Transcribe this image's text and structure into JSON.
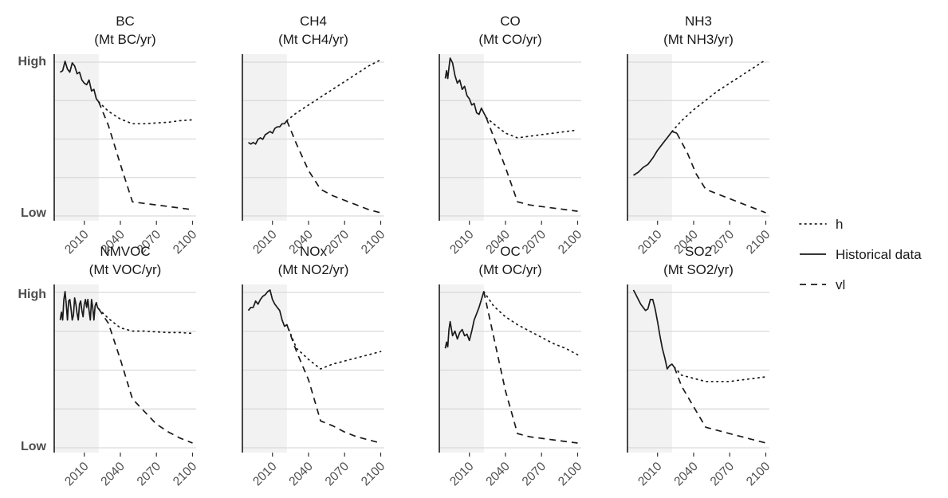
{
  "y_labels": {
    "high": "High",
    "low": "Low"
  },
  "legend": [
    {
      "label": "h",
      "dash": "dotted"
    },
    {
      "label": "Historical data",
      "dash": "solid"
    },
    {
      "label": "vl",
      "dash": "dashed"
    }
  ],
  "chart_data": [
    {
      "type": "line",
      "title": "BC",
      "subtitle": "(Mt BC/yr)",
      "xlim": [
        1985,
        2103
      ],
      "xticks": [
        2010,
        2040,
        2070,
        2100
      ],
      "y_scale": "relative (Low to High, unlabeled values)",
      "historical_shading": [
        1985,
        2022
      ],
      "series": [
        {
          "name": "Historical data",
          "x": [
            1990,
            1992,
            1994,
            1996,
            1998,
            2000,
            2002,
            2004,
            2006,
            2008,
            2010,
            2012,
            2014,
            2016,
            2018,
            2020,
            2022
          ],
          "y": [
            0.91,
            0.92,
            0.98,
            0.93,
            0.91,
            0.97,
            0.95,
            0.9,
            0.91,
            0.86,
            0.84,
            0.83,
            0.86,
            0.79,
            0.8,
            0.74,
            0.72
          ]
        },
        {
          "name": "h",
          "x": [
            2022,
            2030,
            2040,
            2050,
            2060,
            2070,
            2080,
            2090,
            2100
          ],
          "y": [
            0.72,
            0.66,
            0.61,
            0.58,
            0.58,
            0.585,
            0.59,
            0.6,
            0.605
          ]
        },
        {
          "name": "vl",
          "x": [
            2022,
            2030,
            2040,
            2050,
            2060,
            2070,
            2080,
            2090,
            2100
          ],
          "y": [
            0.72,
            0.57,
            0.32,
            0.08,
            0.07,
            0.06,
            0.05,
            0.04,
            0.03
          ]
        }
      ]
    },
    {
      "type": "line",
      "title": "CH4",
      "subtitle": "(Mt CH4/yr)",
      "xlim": [
        1985,
        2103
      ],
      "xticks": [
        2010,
        2040,
        2070,
        2100
      ],
      "y_scale": "relative (Low to High, unlabeled values)",
      "historical_shading": [
        1985,
        2022
      ],
      "series": [
        {
          "name": "Historical data",
          "x": [
            1990,
            1992,
            1994,
            1996,
            1998,
            2000,
            2002,
            2004,
            2006,
            2008,
            2010,
            2012,
            2014,
            2016,
            2018,
            2020,
            2022
          ],
          "y": [
            0.46,
            0.45,
            0.46,
            0.45,
            0.48,
            0.49,
            0.48,
            0.51,
            0.52,
            0.53,
            0.52,
            0.55,
            0.56,
            0.56,
            0.58,
            0.58,
            0.6
          ]
        },
        {
          "name": "h",
          "x": [
            2022,
            2030,
            2040,
            2050,
            2060,
            2070,
            2080,
            2090,
            2100
          ],
          "y": [
            0.6,
            0.65,
            0.7,
            0.75,
            0.8,
            0.85,
            0.9,
            0.95,
            0.99
          ]
        },
        {
          "name": "vl",
          "x": [
            2022,
            2030,
            2040,
            2050,
            2060,
            2070,
            2080,
            2090,
            2100
          ],
          "y": [
            0.6,
            0.45,
            0.28,
            0.16,
            0.12,
            0.09,
            0.06,
            0.03,
            0.01
          ]
        }
      ]
    },
    {
      "type": "line",
      "title": "CO",
      "subtitle": "(Mt CO/yr)",
      "xlim": [
        1985,
        2103
      ],
      "xticks": [
        2010,
        2040,
        2070,
        2100
      ],
      "y_scale": "relative (Low to High, unlabeled values)",
      "historical_shading": [
        1985,
        2022
      ],
      "series": [
        {
          "name": "Historical data",
          "x": [
            1990,
            1991,
            1992,
            1993,
            1994,
            1996,
            1998,
            2000,
            2002,
            2004,
            2006,
            2008,
            2010,
            2012,
            2014,
            2016,
            2018,
            2020,
            2022,
            2024
          ],
          "y": [
            0.87,
            0.92,
            0.87,
            0.94,
            1.0,
            0.97,
            0.89,
            0.84,
            0.86,
            0.8,
            0.82,
            0.76,
            0.74,
            0.7,
            0.71,
            0.65,
            0.64,
            0.68,
            0.65,
            0.62
          ]
        },
        {
          "name": "h",
          "x": [
            2024,
            2030,
            2040,
            2050,
            2060,
            2070,
            2080,
            2090,
            2100
          ],
          "y": [
            0.62,
            0.58,
            0.52,
            0.49,
            0.5,
            0.51,
            0.52,
            0.53,
            0.54
          ]
        },
        {
          "name": "vl",
          "x": [
            2024,
            2030,
            2040,
            2050,
            2060,
            2070,
            2080,
            2090,
            2100
          ],
          "y": [
            0.62,
            0.5,
            0.3,
            0.08,
            0.06,
            0.05,
            0.04,
            0.03,
            0.02
          ]
        }
      ]
    },
    {
      "type": "line",
      "title": "NH3",
      "subtitle": "(Mt NH3/yr)",
      "xlim": [
        1985,
        2103
      ],
      "xticks": [
        2010,
        2040,
        2070,
        2100
      ],
      "y_scale": "relative (Low to High, unlabeled values)",
      "historical_shading": [
        1985,
        2022
      ],
      "series": [
        {
          "name": "Historical data",
          "x": [
            1990,
            1994,
            1998,
            2002,
            2006,
            2010,
            2014,
            2018,
            2022,
            2026
          ],
          "y": [
            0.25,
            0.27,
            0.3,
            0.32,
            0.36,
            0.41,
            0.45,
            0.49,
            0.53,
            0.52
          ]
        },
        {
          "name": "h",
          "x": [
            2022,
            2030,
            2040,
            2050,
            2060,
            2070,
            2080,
            2090,
            2100
          ],
          "y": [
            0.53,
            0.6,
            0.67,
            0.73,
            0.79,
            0.84,
            0.89,
            0.94,
            0.99
          ]
        },
        {
          "name": "vl",
          "x": [
            2026,
            2035,
            2042,
            2050,
            2060,
            2070,
            2080,
            2090,
            2100
          ],
          "y": [
            0.52,
            0.39,
            0.26,
            0.16,
            0.13,
            0.1,
            0.07,
            0.04,
            0.01
          ]
        }
      ]
    },
    {
      "type": "line",
      "title": "NMVOC",
      "subtitle": "(Mt VOC/yr)",
      "xlim": [
        1985,
        2103
      ],
      "xticks": [
        2010,
        2040,
        2070,
        2100
      ],
      "y_scale": "relative (Low to High, unlabeled values)",
      "historical_shading": [
        1985,
        2022
      ],
      "series": [
        {
          "name": "Historical data",
          "x": [
            1990,
            1991,
            1992,
            1993,
            1994,
            1995,
            1996,
            1997,
            1998,
            1999,
            2000,
            2001,
            2002,
            2003,
            2004,
            2005,
            2006,
            2007,
            2008,
            2009,
            2010,
            2011,
            2012,
            2013,
            2014,
            2015,
            2016,
            2017,
            2018,
            2019,
            2020,
            2021,
            2022
          ],
          "y": [
            0.8,
            0.85,
            0.8,
            0.93,
            0.98,
            0.9,
            0.8,
            0.92,
            0.93,
            0.87,
            0.8,
            0.83,
            0.94,
            0.9,
            0.84,
            0.8,
            0.9,
            0.92,
            0.86,
            0.82,
            0.9,
            0.93,
            0.88,
            0.93,
            0.86,
            0.8,
            0.93,
            0.88,
            0.8,
            0.89,
            0.91,
            0.88,
            0.87
          ]
        },
        {
          "name": "h",
          "x": [
            2022,
            2030,
            2040,
            2050,
            2060,
            2070,
            2080,
            2090,
            2100
          ],
          "y": [
            0.87,
            0.81,
            0.75,
            0.73,
            0.73,
            0.725,
            0.72,
            0.72,
            0.715
          ]
        },
        {
          "name": "vl",
          "x": [
            2022,
            2030,
            2040,
            2050,
            2060,
            2070,
            2080,
            2090,
            2100
          ],
          "y": [
            0.87,
            0.78,
            0.55,
            0.3,
            0.22,
            0.14,
            0.09,
            0.05,
            0.02
          ]
        }
      ]
    },
    {
      "type": "line",
      "title": "NOx",
      "subtitle": "(Mt NO2/yr)",
      "xlim": [
        1985,
        2103
      ],
      "xticks": [
        2010,
        2040,
        2070,
        2100
      ],
      "y_scale": "relative (Low to High, unlabeled values)",
      "historical_shading": [
        1985,
        2022
      ],
      "series": [
        {
          "name": "Historical data",
          "x": [
            1990,
            1992,
            1994,
            1996,
            1998,
            2000,
            2002,
            2004,
            2006,
            2008,
            2010,
            2012,
            2014,
            2016,
            2018,
            2020,
            2022
          ],
          "y": [
            0.86,
            0.88,
            0.88,
            0.92,
            0.9,
            0.93,
            0.95,
            0.96,
            0.98,
            0.99,
            0.93,
            0.9,
            0.88,
            0.86,
            0.8,
            0.76,
            0.77
          ]
        },
        {
          "name": "h",
          "x": [
            2022,
            2030,
            2040,
            2050,
            2060,
            2070,
            2080,
            2090,
            2100
          ],
          "y": [
            0.77,
            0.62,
            0.55,
            0.49,
            0.52,
            0.54,
            0.56,
            0.58,
            0.6
          ]
        },
        {
          "name": "vl",
          "x": [
            2022,
            2030,
            2040,
            2050,
            2060,
            2070,
            2080,
            2090,
            2100
          ],
          "y": [
            0.77,
            0.6,
            0.42,
            0.16,
            0.13,
            0.09,
            0.06,
            0.04,
            0.02
          ]
        }
      ]
    },
    {
      "type": "line",
      "title": "OC",
      "subtitle": "(Mt OC/yr)",
      "xlim": [
        1985,
        2103
      ],
      "xticks": [
        2010,
        2040,
        2070,
        2100
      ],
      "y_scale": "relative (Low to High, unlabeled values)",
      "historical_shading": [
        1985,
        2022
      ],
      "series": [
        {
          "name": "Historical data",
          "x": [
            1990,
            1991,
            1992,
            1993,
            1994,
            1996,
            1998,
            2000,
            2002,
            2004,
            2006,
            2008,
            2010,
            2012,
            2014,
            2016,
            2018,
            2020,
            2022
          ],
          "y": [
            0.62,
            0.66,
            0.63,
            0.74,
            0.79,
            0.7,
            0.73,
            0.68,
            0.72,
            0.74,
            0.7,
            0.71,
            0.67,
            0.73,
            0.8,
            0.84,
            0.88,
            0.93,
            0.98
          ]
        },
        {
          "name": "h",
          "x": [
            2022,
            2030,
            2040,
            2050,
            2060,
            2070,
            2080,
            2090,
            2100
          ],
          "y": [
            0.98,
            0.89,
            0.82,
            0.77,
            0.73,
            0.69,
            0.65,
            0.62,
            0.58
          ]
        },
        {
          "name": "vl",
          "x": [
            2022,
            2030,
            2040,
            2050,
            2060,
            2070,
            2080,
            2090,
            2100
          ],
          "y": [
            0.98,
            0.7,
            0.35,
            0.08,
            0.06,
            0.05,
            0.04,
            0.03,
            0.02
          ]
        }
      ]
    },
    {
      "type": "line",
      "title": "SO2",
      "subtitle": "(Mt SO2/yr)",
      "xlim": [
        1985,
        2103
      ],
      "xticks": [
        2010,
        2040,
        2070,
        2100
      ],
      "y_scale": "relative (Low to High, unlabeled values)",
      "historical_shading": [
        1985,
        2022
      ],
      "series": [
        {
          "name": "Historical data",
          "x": [
            1990,
            1992,
            1994,
            1996,
            1998,
            2000,
            2002,
            2004,
            2006,
            2008,
            2010,
            2012,
            2014,
            2016,
            2018,
            2020,
            2022,
            2024
          ],
          "y": [
            0.99,
            0.96,
            0.93,
            0.9,
            0.88,
            0.86,
            0.87,
            0.93,
            0.93,
            0.87,
            0.79,
            0.7,
            0.62,
            0.56,
            0.49,
            0.51,
            0.52,
            0.5
          ]
        },
        {
          "name": "h",
          "x": [
            2024,
            2030,
            2040,
            2050,
            2060,
            2070,
            2080,
            2090,
            2100
          ],
          "y": [
            0.5,
            0.45,
            0.43,
            0.41,
            0.41,
            0.41,
            0.42,
            0.43,
            0.44
          ]
        },
        {
          "name": "vl",
          "x": [
            2024,
            2030,
            2040,
            2050,
            2060,
            2070,
            2080,
            2090,
            2100
          ],
          "y": [
            0.5,
            0.38,
            0.25,
            0.12,
            0.1,
            0.08,
            0.06,
            0.04,
            0.02
          ]
        }
      ]
    }
  ]
}
